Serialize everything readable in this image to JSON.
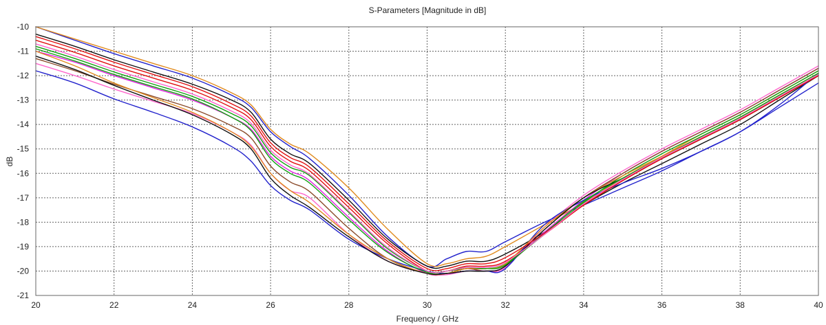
{
  "chart_data": {
    "type": "line",
    "title": "S-Parameters [Magnitude in dB]",
    "xlabel": "Frequency / GHz",
    "ylabel": "dB",
    "xlim": [
      20,
      40
    ],
    "ylim": [
      -21,
      -10
    ],
    "x_ticks": [
      "20",
      "22",
      "24",
      "26",
      "28",
      "30",
      "32",
      "34",
      "36",
      "38",
      "40"
    ],
    "y_ticks": [
      "-10",
      "-11",
      "-12",
      "-13",
      "-14",
      "-15",
      "-16",
      "-17",
      "-18",
      "-19",
      "-20",
      "-21"
    ],
    "grid": true,
    "legend": "none",
    "colors": [
      "#2222cc",
      "#e08a1e",
      "#111111",
      "#e01010",
      "#10a010",
      "#e020e0",
      "#8a4a2a",
      "#ff66cc"
    ],
    "x": [
      20,
      21,
      22,
      23,
      24,
      25,
      25.5,
      26,
      26.5,
      27,
      28,
      29,
      30,
      30.5,
      31,
      31.5,
      32,
      33,
      34,
      35,
      36,
      37,
      38,
      39,
      40
    ],
    "series": [
      {
        "color": "#2222cc",
        "values": [
          -10.0,
          -10.55,
          -11.1,
          -11.6,
          -12.1,
          -12.8,
          -13.3,
          -14.3,
          -14.9,
          -15.4,
          -16.9,
          -18.6,
          -19.8,
          -19.5,
          -19.2,
          -19.2,
          -18.8,
          -18.0,
          -17.3,
          -16.6,
          -15.9,
          -15.1,
          -14.3,
          -13.3,
          -12.3
        ]
      },
      {
        "color": "#e08a1e",
        "values": [
          -10.0,
          -10.5,
          -11.0,
          -11.5,
          -12.0,
          -12.7,
          -13.2,
          -14.2,
          -14.8,
          -15.2,
          -16.6,
          -18.3,
          -19.7,
          -19.7,
          -19.5,
          -19.4,
          -19.0,
          -18.1,
          -17.2,
          -16.2,
          -15.3,
          -14.4,
          -13.6,
          -12.7,
          -11.8
        ]
      },
      {
        "color": "#111111",
        "values": [
          -10.3,
          -10.8,
          -11.35,
          -11.85,
          -12.35,
          -13.0,
          -13.5,
          -14.6,
          -15.2,
          -15.6,
          -17.1,
          -18.7,
          -19.8,
          -19.8,
          -19.6,
          -19.6,
          -19.3,
          -18.4,
          -17.3,
          -16.4,
          -15.6,
          -14.8,
          -14.0,
          -13.0,
          -12.0
        ]
      },
      {
        "color": "#e01010",
        "values": [
          -10.55,
          -11.05,
          -11.6,
          -12.1,
          -12.6,
          -13.3,
          -13.8,
          -14.9,
          -15.5,
          -15.9,
          -17.4,
          -18.9,
          -20.0,
          -20.0,
          -19.8,
          -19.8,
          -19.6,
          -18.5,
          -17.3,
          -16.3,
          -15.4,
          -14.6,
          -13.8,
          -12.9,
          -12.0
        ]
      },
      {
        "color": "#10a010",
        "values": [
          -10.8,
          -11.3,
          -11.85,
          -12.35,
          -12.85,
          -13.55,
          -14.05,
          -15.15,
          -15.75,
          -16.1,
          -17.6,
          -19.1,
          -20.0,
          -20.0,
          -19.9,
          -19.9,
          -19.7,
          -18.5,
          -17.2,
          -16.1,
          -15.2,
          -14.4,
          -13.6,
          -12.7,
          -11.8
        ]
      },
      {
        "color": "#e020e0",
        "values": [
          -11.0,
          -11.45,
          -12.0,
          -12.5,
          -13.0,
          -13.7,
          -14.2,
          -15.3,
          -15.9,
          -16.3,
          -17.8,
          -19.2,
          -20.1,
          -20.1,
          -19.9,
          -20.0,
          -19.8,
          -18.4,
          -17.1,
          -16.0,
          -15.1,
          -14.3,
          -13.5,
          -12.6,
          -11.7
        ]
      },
      {
        "color": "#8a4a2a",
        "values": [
          -11.3,
          -11.8,
          -12.35,
          -12.85,
          -13.35,
          -14.05,
          -14.55,
          -15.7,
          -16.35,
          -16.75,
          -18.25,
          -19.5,
          -20.1,
          -20.1,
          -19.9,
          -20.0,
          -19.8,
          -18.3,
          -17.0,
          -16.0,
          -15.1,
          -14.3,
          -13.5,
          -12.6,
          -11.7
        ]
      },
      {
        "color": "#ff66cc",
        "values": [
          -11.5,
          -12.0,
          -12.55,
          -13.05,
          -13.55,
          -14.3,
          -14.85,
          -16.0,
          -16.7,
          -17.0,
          -18.5,
          -19.6,
          -20.1,
          -20.15,
          -20.0,
          -20.0,
          -19.85,
          -18.2,
          -16.9,
          -15.9,
          -15.0,
          -14.2,
          -13.4,
          -12.5,
          -11.6
        ]
      },
      {
        "color": "#2222cc",
        "values": [
          -11.8,
          -12.3,
          -12.95,
          -13.5,
          -14.1,
          -14.9,
          -15.5,
          -16.5,
          -17.1,
          -17.5,
          -18.7,
          -19.5,
          -20.0,
          -20.1,
          -20.0,
          -20.0,
          -19.9,
          -18.1,
          -17.1,
          -16.4,
          -15.8,
          -15.1,
          -14.3,
          -13.2,
          -11.9
        ]
      },
      {
        "color": "#e08a1e",
        "values": [
          -11.0,
          -11.6,
          -12.3,
          -12.9,
          -13.5,
          -14.3,
          -14.9,
          -16.0,
          -16.7,
          -17.2,
          -18.5,
          -19.5,
          -20.1,
          -20.1,
          -19.9,
          -19.9,
          -19.7,
          -18.2,
          -17.0,
          -16.1,
          -15.3,
          -14.5,
          -13.7,
          -12.8,
          -11.9
        ]
      },
      {
        "color": "#111111",
        "values": [
          -11.2,
          -11.75,
          -12.4,
          -13.0,
          -13.6,
          -14.4,
          -15.0,
          -16.2,
          -16.9,
          -17.4,
          -18.6,
          -19.6,
          -20.1,
          -20.1,
          -20.0,
          -20.0,
          -19.8,
          -18.3,
          -17.0,
          -16.2,
          -15.4,
          -14.6,
          -13.8,
          -12.9,
          -12.0
        ]
      },
      {
        "color": "#10a010",
        "values": [
          -10.9,
          -11.4,
          -11.95,
          -12.45,
          -12.95,
          -13.7,
          -14.25,
          -15.4,
          -16.0,
          -16.4,
          -17.9,
          -19.25,
          -20.05,
          -20.0,
          -19.85,
          -19.9,
          -19.75,
          -18.45,
          -17.15,
          -16.2,
          -15.35,
          -14.5,
          -13.7,
          -12.8,
          -11.9
        ]
      },
      {
        "color": "#e01010",
        "values": [
          -10.4,
          -10.9,
          -11.45,
          -11.95,
          -12.45,
          -13.15,
          -13.65,
          -14.75,
          -15.35,
          -15.75,
          -17.25,
          -18.8,
          -19.9,
          -19.9,
          -19.7,
          -19.7,
          -19.45,
          -18.45,
          -17.3,
          -16.3,
          -15.4,
          -14.6,
          -13.8,
          -12.9,
          -12.0
        ]
      },
      {
        "color": "#ff66cc",
        "values": [
          -10.7,
          -11.2,
          -11.75,
          -12.25,
          -12.75,
          -13.45,
          -13.95,
          -15.05,
          -15.65,
          -16.05,
          -17.55,
          -19.05,
          -20.0,
          -20.0,
          -19.85,
          -19.85,
          -19.65,
          -18.5,
          -17.25,
          -16.25,
          -15.35,
          -14.55,
          -13.75,
          -12.85,
          -11.95
        ]
      }
    ]
  }
}
